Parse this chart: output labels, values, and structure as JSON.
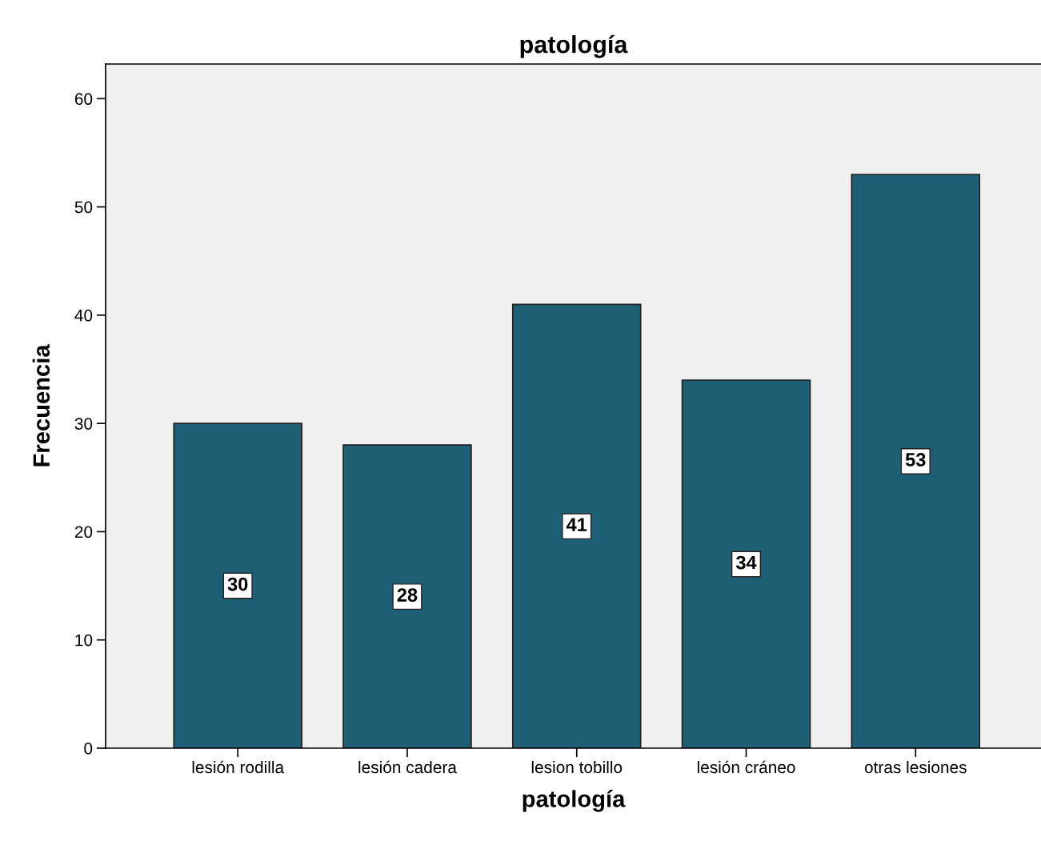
{
  "chart_data": {
    "type": "bar",
    "title": "patología",
    "xlabel": "patología",
    "ylabel": "Frecuencia",
    "categories": [
      "lesión rodilla",
      "lesión cadera",
      "lesion tobillo",
      "lesión cráneo",
      "otras lesiones"
    ],
    "values": [
      30,
      28,
      41,
      34,
      53
    ],
    "color": "#1f5f75",
    "ylim": [
      0,
      63.2
    ],
    "yticks": [
      0,
      10,
      20,
      30,
      40,
      50,
      60
    ],
    "grid": false,
    "legend": false,
    "data_labels": true
  }
}
